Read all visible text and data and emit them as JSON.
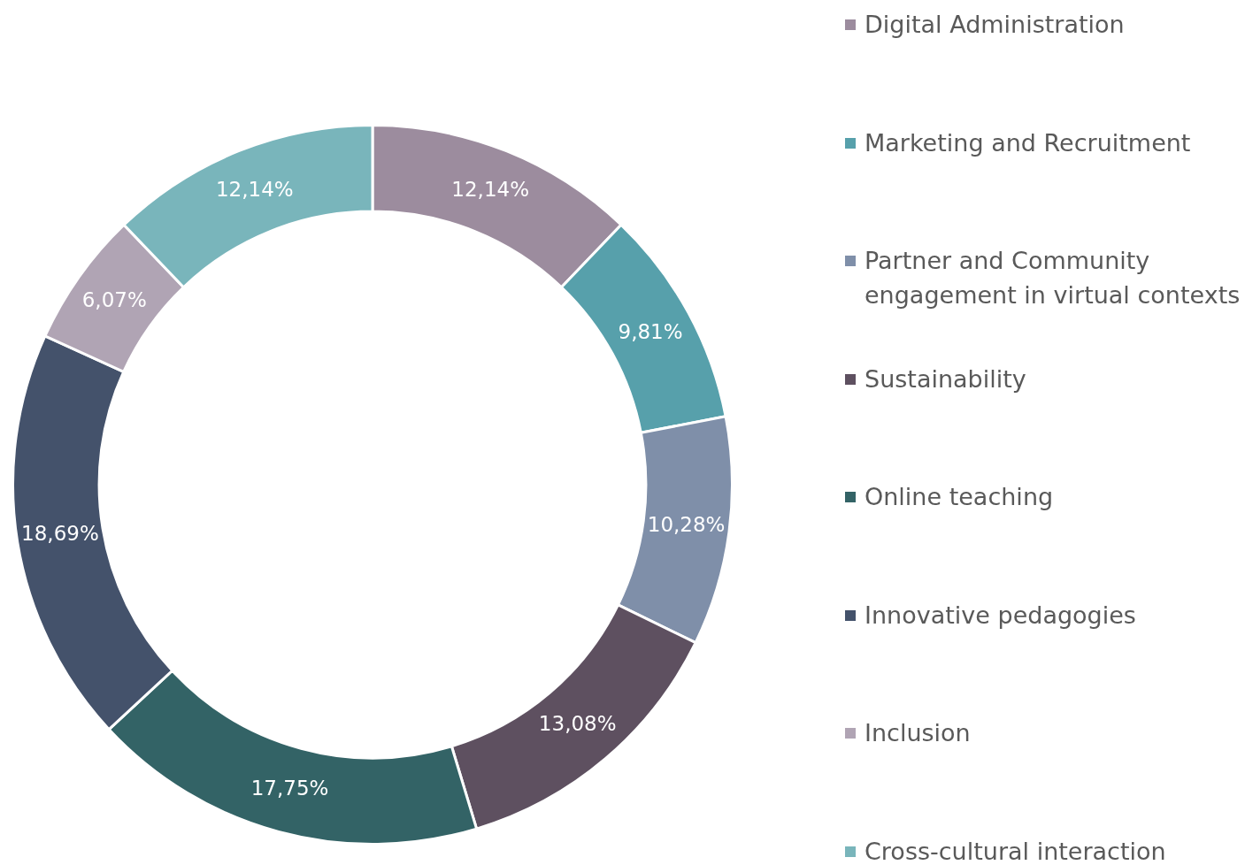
{
  "chart_data": {
    "type": "donut",
    "categories": [
      "Digital Administration",
      "Marketing and Recruitment",
      "Partner and Community engagement in virtual contexts",
      "Sustainability",
      "Online teaching",
      "Innovative pedagogies",
      "Inclusion",
      "Cross-cultural interaction"
    ],
    "values": [
      12.14,
      9.81,
      10.28,
      13.08,
      17.75,
      18.69,
      6.07,
      12.14
    ],
    "value_labels": [
      "12,14%",
      "9,81%",
      "10,28%",
      "13,08%",
      "17,75%",
      "18,69%",
      "6,07%",
      "12,14%"
    ],
    "colors": [
      "#9c8c9e",
      "#57a0ab",
      "#7f8fa9",
      "#5e5060",
      "#336366",
      "#44526b",
      "#b0a4b4",
      "#79b5bb"
    ],
    "legend": "right"
  }
}
